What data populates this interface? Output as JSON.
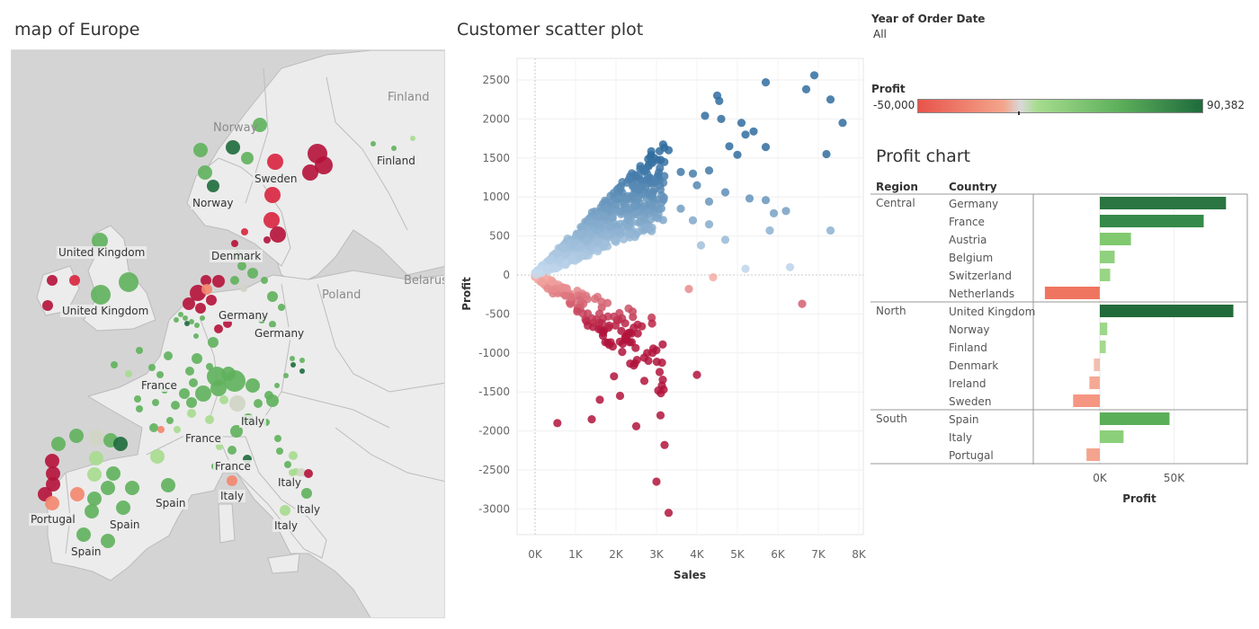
{
  "map": {
    "title": "map of Europe",
    "country_labels": [
      "Finland",
      "Norway",
      "Sweden",
      "Belarus",
      "Poland"
    ],
    "city_labels": [
      "Norway",
      "Sweden",
      "Norway",
      "Finland",
      "Denmark",
      "United Kingdom",
      "United Kingdom",
      "Germany",
      "Germany",
      "France",
      "France",
      "France",
      "Italy",
      "Italy",
      "Italy",
      "Italy",
      "Spain",
      "Spain",
      "Spain",
      "Portugal"
    ],
    "bubble_colors": {
      "dark_red": "#b5123a",
      "red": "#d9243f",
      "salmon": "#f4866e",
      "light_green": "#a6dc8e",
      "green": "#5fb15c",
      "dark_green": "#1e6b3c",
      "grey": "#cfd5c4"
    }
  },
  "scatter": {
    "title": "Customer scatter plot",
    "x_label": "Sales",
    "y_label": "Profit",
    "x_ticks": [
      "0K",
      "1K",
      "2K",
      "3K",
      "4K",
      "5K",
      "6K",
      "7K",
      "8K"
    ],
    "y_ticks": [
      "2500",
      "2000",
      "1500",
      "1000",
      "500",
      "0",
      "-500",
      "-1000",
      "-1500",
      "-2000",
      "-2500",
      "-3000"
    ]
  },
  "filter": {
    "title": "Year of Order Date",
    "value": "All"
  },
  "legend": {
    "title": "Profit",
    "min_label": "-50,000",
    "max_label": "90,382"
  },
  "profit_chart": {
    "title": "Profit chart",
    "header_region": "Region",
    "header_country": "Country",
    "x_axis_title": "Profit",
    "x_ticks": [
      "0K",
      "50K"
    ],
    "groups": [
      {
        "region": "Central",
        "rows": [
          {
            "country": "Germany",
            "profit": 85000,
            "color": "#2a7541"
          },
          {
            "country": "France",
            "profit": 70000,
            "color": "#35894a"
          },
          {
            "country": "Austria",
            "profit": 21000,
            "color": "#80c96f"
          },
          {
            "country": "Belgium",
            "profit": 10000,
            "color": "#8fd17e"
          },
          {
            "country": "Switzerland",
            "profit": 7000,
            "color": "#98d584"
          },
          {
            "country": "Netherlands",
            "profit": -37000,
            "color": "#f07560"
          }
        ]
      },
      {
        "region": "North",
        "rows": [
          {
            "country": "United Kingdom",
            "profit": 90000,
            "color": "#236a3a"
          },
          {
            "country": "Norway",
            "profit": 5000,
            "color": "#9dd789"
          },
          {
            "country": "Finland",
            "profit": 4000,
            "color": "#a3da8e"
          },
          {
            "country": "Denmark",
            "profit": -4000,
            "color": "#f2bfae"
          },
          {
            "country": "Ireland",
            "profit": -7000,
            "color": "#f4a994"
          },
          {
            "country": "Sweden",
            "profit": -18000,
            "color": "#f59682"
          }
        ]
      },
      {
        "region": "South",
        "rows": [
          {
            "country": "Spain",
            "profit": 47000,
            "color": "#5aae58"
          },
          {
            "country": "Italy",
            "profit": 16000,
            "color": "#8bcf7a"
          },
          {
            "country": "Portugal",
            "profit": -9000,
            "color": "#f4a38e"
          }
        ]
      }
    ]
  }
}
